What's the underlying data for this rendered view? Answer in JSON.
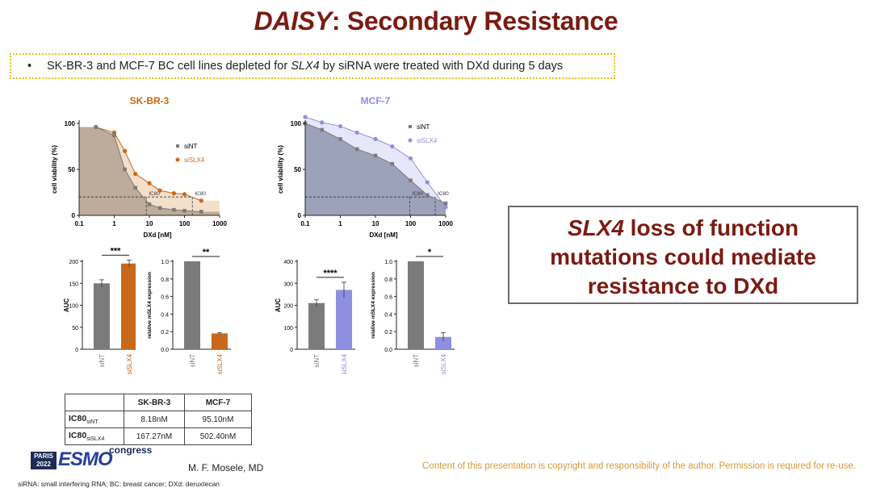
{
  "title": {
    "italic": "DAISY",
    "rest": ": Secondary Resistance"
  },
  "banner": {
    "bullet": "•",
    "pre": "SK-BR-3 and MCF-7 BC cell lines depleted for ",
    "gene": "SLX4",
    "post": " by siRNA were treated with DXd during 5 days"
  },
  "callout": {
    "gene": "SLX4",
    "line1_rest": " loss of function",
    "line2": "mutations could mediate",
    "line3": "resistance to DXd"
  },
  "colors": {
    "siNT": "#7b7b7b",
    "siSLX4_skbr3": "#c8681a",
    "siSLX4_mcf7": "#8f8fe0",
    "title": "#7a1b12"
  },
  "chart_data": [
    {
      "id": "skbr3_curve",
      "type": "line",
      "title": "SK-BR-3",
      "xlabel": "DXd [nM]",
      "ylabel": "cell viability (%)",
      "xscale": "log",
      "xlim": [
        0.1,
        1000
      ],
      "ylim": [
        0,
        100
      ],
      "xticks": [
        "0.1",
        "1",
        "10",
        "100",
        "1000"
      ],
      "yticks": [
        "0",
        "50",
        "100"
      ],
      "x": [
        0.3,
        1,
        2,
        4,
        10,
        20,
        50,
        100,
        300
      ],
      "series": [
        {
          "name": "siNT",
          "values": [
            96,
            87,
            50,
            30,
            12,
            8,
            6,
            5,
            4
          ]
        },
        {
          "name": "siSLX4",
          "values": [
            96,
            90,
            70,
            45,
            35,
            27,
            24,
            23,
            16
          ]
        }
      ],
      "annotations": [
        "IC80",
        "IC80"
      ],
      "legend_position": "right"
    },
    {
      "id": "mcf7_curve",
      "type": "line",
      "title": "MCF-7",
      "xlabel": "DXd [nM]",
      "ylabel": "cell viability (%)",
      "xscale": "log",
      "xlim": [
        0.1,
        1000
      ],
      "ylim": [
        0,
        100
      ],
      "xticks": [
        "0.1",
        "1",
        "10",
        "100",
        "1000"
      ],
      "yticks": [
        "0",
        "50",
        "100"
      ],
      "x": [
        0.1,
        0.3,
        1,
        3,
        10,
        30,
        100,
        300,
        1000
      ],
      "series": [
        {
          "name": "siNT",
          "values": [
            100,
            93,
            83,
            72,
            65,
            56,
            38,
            22,
            13
          ]
        },
        {
          "name": "siSLX4",
          "values": [
            107,
            101,
            97,
            90,
            83,
            75,
            62,
            36,
            9
          ]
        }
      ],
      "annotations": [
        "IC80",
        "IC80"
      ],
      "legend_position": "top-right"
    },
    {
      "id": "skbr3_auc",
      "type": "bar",
      "ylabel": "AUC",
      "categories": [
        "siNT",
        "siSLX4"
      ],
      "values": [
        150,
        195
      ],
      "errors": [
        8,
        8
      ],
      "ylim": [
        0,
        200
      ],
      "yticks": [
        "0",
        "50",
        "100",
        "150",
        "200"
      ],
      "significance": "***"
    },
    {
      "id": "skbr3_expr",
      "type": "bar",
      "ylabel": "relative mSLX4 expression",
      "categories": [
        "siNT",
        "siSLX4"
      ],
      "values": [
        1.0,
        0.18
      ],
      "errors": [
        0,
        0.01
      ],
      "ylim": [
        0,
        1.0
      ],
      "yticks": [
        "0.0",
        "0.2",
        "0.4",
        "0.6",
        "0.8",
        "1.0"
      ],
      "significance": "**"
    },
    {
      "id": "mcf7_auc",
      "type": "bar",
      "ylabel": "AUC",
      "categories": [
        "siNT",
        "siSLX4"
      ],
      "values": [
        210,
        270
      ],
      "errors": [
        15,
        35
      ],
      "ylim": [
        0,
        400
      ],
      "yticks": [
        "0",
        "100",
        "200",
        "300",
        "400"
      ],
      "significance": "****"
    },
    {
      "id": "mcf7_expr",
      "type": "bar",
      "ylabel": "relative mSLX4 expression",
      "categories": [
        "siNT",
        "siSLX4"
      ],
      "values": [
        1.0,
        0.14
      ],
      "errors": [
        0,
        0.05
      ],
      "ylim": [
        0,
        1.0
      ],
      "yticks": [
        "0.0",
        "0.2",
        "0.4",
        "0.6",
        "0.8",
        "1.0"
      ],
      "significance": "*"
    }
  ],
  "ic80_table": {
    "headers": [
      "",
      "SK-BR-3",
      "MCF-7"
    ],
    "rows": [
      {
        "label": "IC80",
        "sub": "siNT",
        "values": [
          "8.18nM",
          "95.10nM"
        ]
      },
      {
        "label": "IC80",
        "sub": "siSLX4",
        "values": [
          "167.27nM",
          "502.40nM"
        ]
      }
    ]
  },
  "footer": {
    "logo_city": "PARIS",
    "logo_year": "2022",
    "logo_word": "ESMO",
    "congress": "congress",
    "author": "M. F. Mosele, MD",
    "copyright": "Content of this presentation is copyright and responsibility of the author. Permission is required for re-use.",
    "footnote": "siRNA: small interfering RNA; BC: breast cancer; DXd: deruxtecan"
  }
}
